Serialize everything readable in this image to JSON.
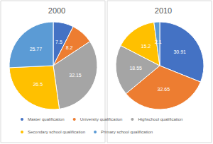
{
  "chart_data": [
    {
      "type": "pie",
      "title": "2000",
      "categories": [
        "Master qualification",
        "University qualification",
        "Highschool qualification",
        "Secondary school qualification",
        "Primary school qualification"
      ],
      "values": [
        7.5,
        8.2,
        32.15,
        26.5,
        25.77
      ],
      "colors": [
        "#4472c4",
        "#ed7d31",
        "#a5a5a5",
        "#ffc000",
        "#5b9bd5"
      ],
      "data_labels": true,
      "legend": "bottom"
    },
    {
      "type": "pie",
      "title": "2010",
      "categories": [
        "Master qualification",
        "University qualification",
        "Highschool qualification",
        "Secondary school qualification",
        "Primary school qualification"
      ],
      "values": [
        30.91,
        32.65,
        18.55,
        15.2,
        2.1
      ],
      "colors": [
        "#4472c4",
        "#ed7d31",
        "#a5a5a5",
        "#ffc000",
        "#5b9bd5"
      ],
      "data_labels": true,
      "legend": "bottom"
    }
  ]
}
